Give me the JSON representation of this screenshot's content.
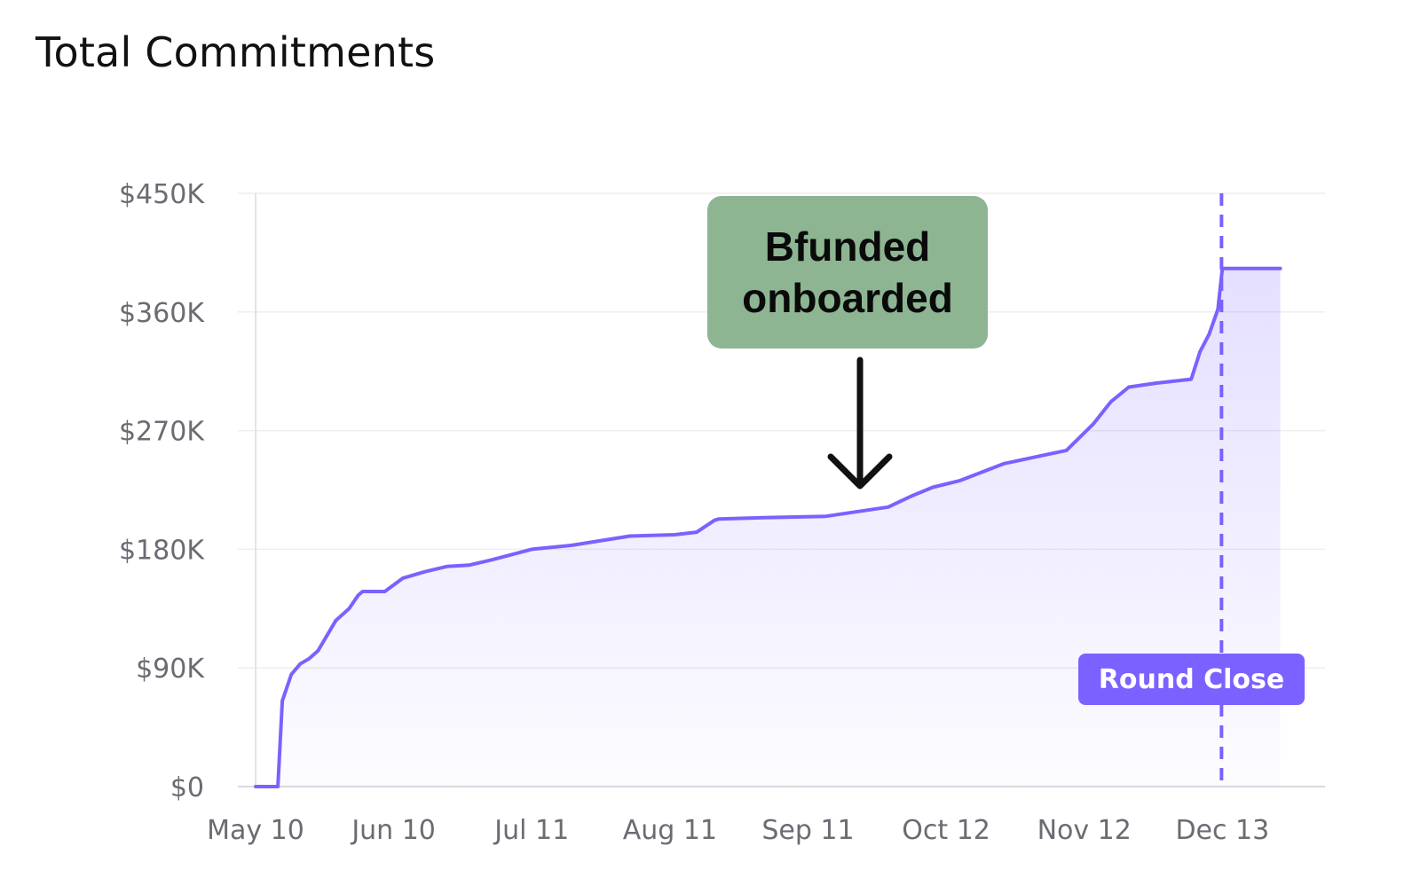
{
  "header": {
    "title": "Total Commitments"
  },
  "chart_data": {
    "type": "area",
    "title": "Total Commitments",
    "xlabel": "",
    "ylabel": "",
    "y_ticks": [
      "$0",
      "$90K",
      "$180K",
      "$270K",
      "$360K",
      "$450K"
    ],
    "y_tick_values": [
      0,
      90000,
      180000,
      270000,
      360000,
      450000
    ],
    "ylim": [
      0,
      450000
    ],
    "x_ticks": [
      "May 10",
      "Jun 10",
      "Jul 11",
      "Aug 11",
      "Sep 11",
      "Oct 12",
      "Nov 12",
      "Dec 13"
    ],
    "xlim": [
      "2022-05-10",
      "2022-12-26"
    ],
    "grid": true,
    "series": [
      {
        "color": "#7b61ff",
        "x": [
          "2022-05-10",
          "2022-05-15",
          "2022-05-16",
          "2022-05-18",
          "2022-05-20",
          "2022-05-22",
          "2022-05-24",
          "2022-05-28",
          "2022-05-31",
          "2022-06-02",
          "2022-06-03",
          "2022-06-08",
          "2022-06-12",
          "2022-06-17",
          "2022-06-22",
          "2022-06-27",
          "2022-07-02",
          "2022-07-11",
          "2022-07-20",
          "2022-08-02",
          "2022-08-12",
          "2022-08-17",
          "2022-08-21",
          "2022-08-22",
          "2022-09-01",
          "2022-09-15",
          "2022-09-29",
          "2022-10-04",
          "2022-10-09",
          "2022-10-15",
          "2022-10-25",
          "2022-11-01",
          "2022-11-08",
          "2022-11-14",
          "2022-11-18",
          "2022-11-22",
          "2022-11-28",
          "2022-12-06",
          "2022-12-08",
          "2022-12-10",
          "2022-12-12",
          "2022-12-13",
          "2022-12-26"
        ],
        "values": [
          0,
          0,
          65000,
          85000,
          93000,
          97000,
          103000,
          126000,
          135000,
          145000,
          148000,
          148000,
          158000,
          163000,
          167000,
          168000,
          172000,
          180000,
          183000,
          190000,
          191000,
          193000,
          202000,
          203000,
          204000,
          205000,
          212000,
          220000,
          227000,
          232000,
          245000,
          250000,
          255000,
          275000,
          292000,
          303000,
          306000,
          309000,
          330000,
          343000,
          362000,
          393000,
          393000
        ]
      }
    ],
    "annotations": [
      {
        "text": "Bfunded\nonboarded",
        "x": "2022-09-29",
        "background": "#8db592"
      },
      {
        "text": "Round Close",
        "x": "2022-12-13",
        "background": "#7b61ff"
      }
    ]
  },
  "colors": {
    "line": "#7b61ff",
    "fill": "#7b61ff",
    "grid": "#eeeeee",
    "annotation_green": "#8db592",
    "round_close": "#7b61ff"
  }
}
